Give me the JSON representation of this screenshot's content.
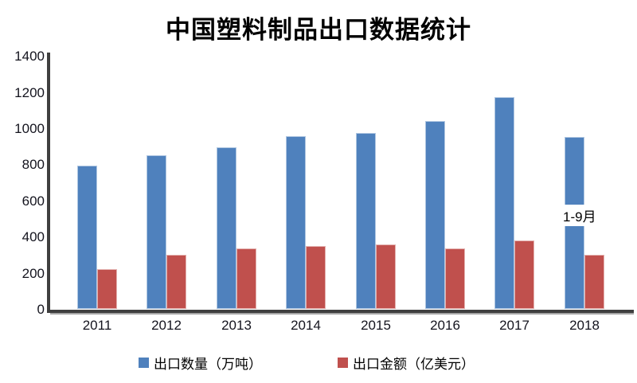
{
  "chart_data": {
    "type": "bar",
    "title": "中国塑料制品出口数据统计",
    "categories": [
      "2011",
      "2012",
      "2013",
      "2014",
      "2015",
      "2016",
      "2017",
      "2018"
    ],
    "series": [
      {
        "name": "出口数量（万吨）",
        "color": "#4F81BD",
        "values": [
          795,
          850,
          895,
          955,
          975,
          1040,
          1170,
          950
        ]
      },
      {
        "name": "出口金额（亿美元）",
        "color": "#C0504D",
        "values": [
          220,
          300,
          335,
          350,
          355,
          335,
          380,
          300
        ]
      }
    ],
    "xlabel": "",
    "ylabel": "",
    "ylim": [
      0,
      1400
    ],
    "y_ticks": [
      0,
      200,
      400,
      600,
      800,
      1000,
      1200,
      1400
    ],
    "grid": false,
    "legend_position": "bottom",
    "annotation": {
      "text": "1-9月",
      "target_category": "2018"
    },
    "colors": {
      "axis": "#3f3f3f",
      "background": "#ffffff",
      "text": "#000000"
    }
  }
}
